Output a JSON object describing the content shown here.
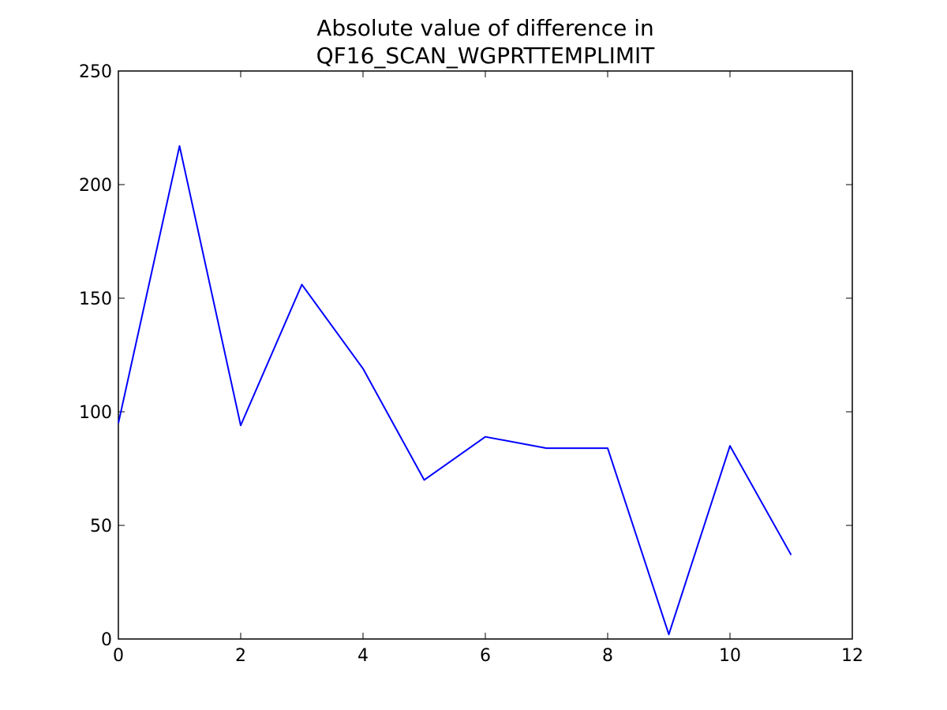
{
  "chart_data": {
    "type": "line",
    "title": [
      "Absolute value of difference in",
      "QF16_SCAN_WGPRTTEMPLIMIT"
    ],
    "x": [
      0,
      1,
      2,
      3,
      4,
      5,
      6,
      7,
      8,
      9,
      10,
      11
    ],
    "series": [
      {
        "color": "#0000ff",
        "values": [
          95,
          217,
          94,
          156,
          119,
          70,
          89,
          84,
          84,
          2,
          85,
          37
        ]
      }
    ],
    "xlim": [
      0,
      12
    ],
    "xticks": [
      0,
      2,
      4,
      6,
      8,
      10,
      12
    ],
    "ylim": [
      0,
      250
    ],
    "yticks": [
      0,
      50,
      100,
      150,
      200,
      250
    ],
    "grid": false
  }
}
